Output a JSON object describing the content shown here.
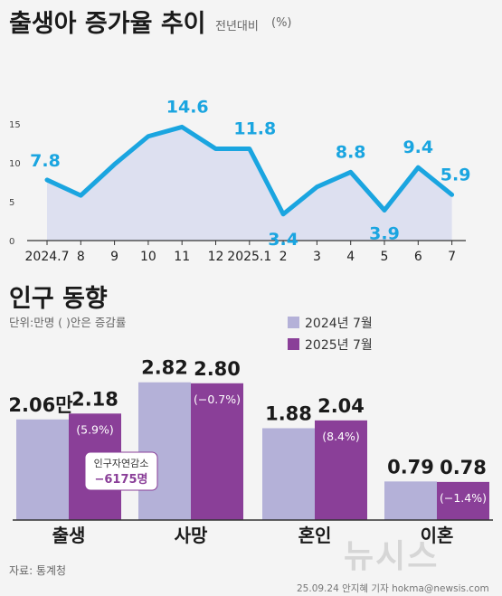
{
  "title1": "출생아 증가율 추이",
  "subtitle1": "전년대비",
  "unit1": "(%)",
  "title2": "인구 동향",
  "unit_note": "단위:만명 ( )안은  증감률",
  "source": "자료: 통계청",
  "footer": "25.09.24 안지혜 기자 hokma@newsis.com",
  "watermark": "뉴시스",
  "colors": {
    "line": "#1aa5e0",
    "area": "#dde0f0",
    "bar2024": "#b4b1d8",
    "bar2025": "#8a3f98"
  },
  "chart_data": [
    {
      "type": "line",
      "title": "출생아 증가율 추이",
      "ylabel": "(%)",
      "x": [
        "2024.7",
        "8",
        "9",
        "10",
        "11",
        "12",
        "2025.1",
        "2",
        "3",
        "4",
        "5",
        "6",
        "7"
      ],
      "yticks": [
        "0",
        "5",
        "10",
        "15"
      ],
      "ylim": [
        0,
        16
      ],
      "grid": false,
      "values": [
        7.8,
        5.8,
        9.8,
        13.4,
        14.6,
        11.8,
        11.8,
        3.4,
        6.9,
        8.8,
        3.9,
        9.4,
        5.9
      ],
      "labels": [
        {
          "index": 0,
          "text": "7.8"
        },
        {
          "index": 4,
          "text": "14.6"
        },
        {
          "index": 6,
          "text": "11.8"
        },
        {
          "index": 7,
          "text": "3.4"
        },
        {
          "index": 9,
          "text": "8.8"
        },
        {
          "index": 10,
          "text": "3.9"
        },
        {
          "index": 11,
          "text": "9.4"
        },
        {
          "index": 12,
          "text": "5.9"
        }
      ]
    },
    {
      "type": "bar",
      "title": "인구 동향",
      "categories": [
        "출생",
        "사망",
        "혼인",
        "이혼"
      ],
      "legend_position": "top-right",
      "series": [
        {
          "name": "2024년 7월",
          "values": [
            2.06,
            2.82,
            1.88,
            0.79
          ],
          "labels": [
            "2.06만",
            "2.82",
            "1.88",
            "0.79"
          ]
        },
        {
          "name": "2025년 7월",
          "values": [
            2.18,
            2.8,
            2.04,
            0.78
          ],
          "labels": [
            "2.18",
            "2.80",
            "2.04",
            "0.78"
          ],
          "changes": [
            "(5.9%)",
            "(−0.7%)",
            "(8.4%)",
            "(−1.4%)"
          ]
        }
      ],
      "annotation": {
        "title": "인구자연감소",
        "value": "−6175명"
      }
    }
  ]
}
